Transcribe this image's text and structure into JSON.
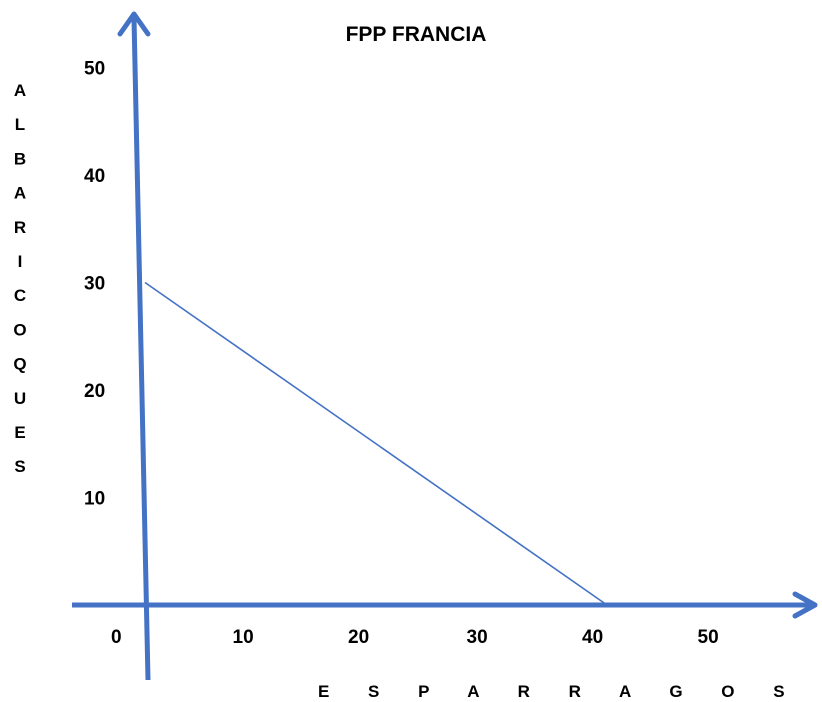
{
  "chart_data": {
    "type": "line",
    "title": "FPP FRANCIA",
    "xlabel": "E S P A R R A G O S",
    "ylabel_letters": [
      "A",
      "L",
      "B",
      "A",
      "R",
      "I",
      "C",
      "O",
      "Q",
      "U",
      "E",
      "S"
    ],
    "x_ticks": [
      "0",
      "10",
      "20",
      "30",
      "40",
      "50"
    ],
    "y_ticks": [
      "10",
      "20",
      "30",
      "40",
      "50"
    ],
    "xlim": [
      0,
      50
    ],
    "ylim": [
      0,
      50
    ],
    "series": [
      {
        "x": [
          0,
          40
        ],
        "y": [
          30,
          0
        ]
      }
    ],
    "grid": false,
    "colors": {
      "axis": "#4472c4",
      "line": "#4472c4",
      "text": "#1a1a1a"
    }
  }
}
